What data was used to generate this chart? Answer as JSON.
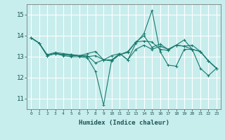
{
  "xlabel": "Humidex (Indice chaleur)",
  "ylabel": "",
  "bg_color": "#c8eded",
  "grid_color": "#ffffff",
  "line_color": "#1a7a6e",
  "xlim": [
    -0.5,
    23.5
  ],
  "ylim": [
    10.5,
    15.5
  ],
  "yticks": [
    11,
    12,
    13,
    14,
    15
  ],
  "xticks": [
    0,
    1,
    2,
    3,
    4,
    5,
    6,
    7,
    8,
    9,
    10,
    11,
    12,
    13,
    14,
    15,
    16,
    17,
    18,
    19,
    20,
    21,
    22,
    23
  ],
  "lines": [
    [
      13.9,
      13.65,
      13.05,
      13.15,
      13.05,
      13.0,
      13.0,
      12.95,
      12.3,
      10.7,
      12.85,
      13.15,
      12.85,
      13.65,
      14.1,
      15.2,
      13.25,
      12.6,
      12.55,
      13.35,
      13.35,
      12.45,
      12.1,
      12.45
    ],
    [
      13.9,
      13.65,
      13.05,
      13.15,
      13.1,
      13.1,
      13.05,
      13.15,
      13.25,
      12.85,
      12.8,
      13.1,
      13.25,
      13.7,
      14.0,
      13.45,
      13.6,
      13.35,
      13.55,
      13.8,
      13.35,
      13.25,
      12.8,
      12.45
    ],
    [
      13.9,
      13.65,
      13.1,
      13.2,
      13.15,
      13.1,
      13.05,
      13.0,
      13.05,
      12.85,
      12.85,
      13.1,
      13.2,
      13.7,
      13.75,
      13.7,
      13.35,
      13.3,
      13.55,
      13.5,
      13.55,
      13.25,
      12.8,
      12.45
    ],
    [
      13.9,
      13.65,
      13.05,
      13.15,
      13.1,
      13.05,
      13.05,
      13.05,
      12.7,
      12.85,
      13.05,
      13.15,
      12.85,
      13.35,
      13.55,
      13.35,
      13.5,
      13.35,
      13.55,
      13.5,
      13.35,
      13.25,
      12.8,
      12.45
    ]
  ]
}
